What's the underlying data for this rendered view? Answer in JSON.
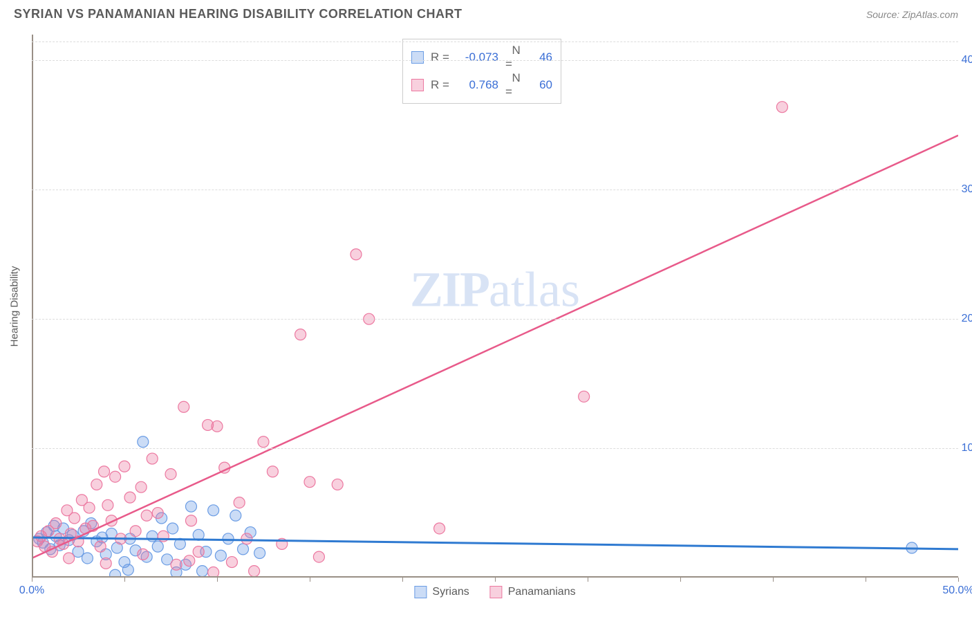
{
  "header": {
    "title": "SYRIAN VS PANAMANIAN HEARING DISABILITY CORRELATION CHART",
    "source": "Source: ZipAtlas.com"
  },
  "watermark": {
    "part1": "ZIP",
    "part2": "atlas"
  },
  "chart": {
    "type": "scatter",
    "ylabel": "Hearing Disability",
    "xlim": [
      0,
      50
    ],
    "ylim": [
      0,
      42
    ],
    "xticks": [
      0,
      50
    ],
    "xtick_labels": [
      "0.0%",
      "50.0%"
    ],
    "xminor_step": 5,
    "yticks": [
      10,
      20,
      30,
      40
    ],
    "ytick_labels": [
      "10.0%",
      "20.0%",
      "30.0%",
      "40.0%"
    ],
    "grid_color": "#dcdcdc",
    "axis_color": "#998f86",
    "background_color": "#ffffff",
    "series": [
      {
        "name": "Syrians",
        "color_fill": "rgba(106,156,228,0.35)",
        "color_stroke": "#6a9ce4",
        "marker_radius": 8,
        "trend": {
          "x1": 0,
          "y1": 3.1,
          "x2": 50,
          "y2": 2.2,
          "stroke": "#2f7ad1",
          "width": 3
        },
        "stats": {
          "R": "-0.073",
          "N": "46"
        },
        "points": [
          [
            0.4,
            3.0
          ],
          [
            0.6,
            2.7
          ],
          [
            0.8,
            3.5
          ],
          [
            1.0,
            2.2
          ],
          [
            1.2,
            4.0
          ],
          [
            1.3,
            3.2
          ],
          [
            1.5,
            2.5
          ],
          [
            1.7,
            3.8
          ],
          [
            2.0,
            2.9
          ],
          [
            2.2,
            3.3
          ],
          [
            2.5,
            2.0
          ],
          [
            2.8,
            3.6
          ],
          [
            3.0,
            1.5
          ],
          [
            3.2,
            4.2
          ],
          [
            3.5,
            2.8
          ],
          [
            3.8,
            3.1
          ],
          [
            4.0,
            1.8
          ],
          [
            4.3,
            3.4
          ],
          [
            4.6,
            2.3
          ],
          [
            5.0,
            1.2
          ],
          [
            5.3,
            3.0
          ],
          [
            5.6,
            2.1
          ],
          [
            6.0,
            10.5
          ],
          [
            6.2,
            1.6
          ],
          [
            6.5,
            3.2
          ],
          [
            6.8,
            2.4
          ],
          [
            7.0,
            4.6
          ],
          [
            7.3,
            1.4
          ],
          [
            7.6,
            3.8
          ],
          [
            8.0,
            2.6
          ],
          [
            8.3,
            1.0
          ],
          [
            8.6,
            5.5
          ],
          [
            9.0,
            3.3
          ],
          [
            9.4,
            2.0
          ],
          [
            9.8,
            5.2
          ],
          [
            10.2,
            1.7
          ],
          [
            10.6,
            3.0
          ],
          [
            11.0,
            4.8
          ],
          [
            11.4,
            2.2
          ],
          [
            11.8,
            3.5
          ],
          [
            12.3,
            1.9
          ],
          [
            5.2,
            0.6
          ],
          [
            7.8,
            0.4
          ],
          [
            4.5,
            0.2
          ],
          [
            9.2,
            0.5
          ],
          [
            47.5,
            2.3
          ]
        ]
      },
      {
        "name": "Panamanians",
        "color_fill": "rgba(236,120,160,0.35)",
        "color_stroke": "#ec78a0",
        "marker_radius": 8,
        "trend": {
          "x1": 0,
          "y1": 1.5,
          "x2": 50,
          "y2": 34.2,
          "stroke": "#e85a8a",
          "width": 2.5
        },
        "stats": {
          "R": "0.768",
          "N": "60"
        },
        "points": [
          [
            0.3,
            2.8
          ],
          [
            0.5,
            3.2
          ],
          [
            0.7,
            2.4
          ],
          [
            0.9,
            3.6
          ],
          [
            1.1,
            2.0
          ],
          [
            1.3,
            4.2
          ],
          [
            1.5,
            3.0
          ],
          [
            1.7,
            2.6
          ],
          [
            1.9,
            5.2
          ],
          [
            2.1,
            3.4
          ],
          [
            2.3,
            4.6
          ],
          [
            2.5,
            2.8
          ],
          [
            2.7,
            6.0
          ],
          [
            2.9,
            3.8
          ],
          [
            3.1,
            5.4
          ],
          [
            3.3,
            4.0
          ],
          [
            3.5,
            7.2
          ],
          [
            3.7,
            2.4
          ],
          [
            3.9,
            8.2
          ],
          [
            4.1,
            5.6
          ],
          [
            4.3,
            4.4
          ],
          [
            4.5,
            7.8
          ],
          [
            4.8,
            3.0
          ],
          [
            5.0,
            8.6
          ],
          [
            5.3,
            6.2
          ],
          [
            5.6,
            3.6
          ],
          [
            5.9,
            7.0
          ],
          [
            6.2,
            4.8
          ],
          [
            6.5,
            9.2
          ],
          [
            6.8,
            5.0
          ],
          [
            7.1,
            3.2
          ],
          [
            7.5,
            8.0
          ],
          [
            7.8,
            1.0
          ],
          [
            8.2,
            13.2
          ],
          [
            8.6,
            4.4
          ],
          [
            9.0,
            2.0
          ],
          [
            9.5,
            11.8
          ],
          [
            10.0,
            11.7
          ],
          [
            10.4,
            8.5
          ],
          [
            10.8,
            1.2
          ],
          [
            11.2,
            5.8
          ],
          [
            11.6,
            3.0
          ],
          [
            12.0,
            0.5
          ],
          [
            12.5,
            10.5
          ],
          [
            13.0,
            8.2
          ],
          [
            13.5,
            2.6
          ],
          [
            14.5,
            18.8
          ],
          [
            15.0,
            7.4
          ],
          [
            15.5,
            1.6
          ],
          [
            16.5,
            7.2
          ],
          [
            17.5,
            25.0
          ],
          [
            18.2,
            20.0
          ],
          [
            22.0,
            3.8
          ],
          [
            29.8,
            14.0
          ],
          [
            40.5,
            36.4
          ],
          [
            6.0,
            1.8
          ],
          [
            9.8,
            0.4
          ],
          [
            8.5,
            1.3
          ],
          [
            4.0,
            1.1
          ],
          [
            2.0,
            1.5
          ]
        ]
      }
    ],
    "xlegend": [
      {
        "label": "Syrians",
        "fill": "rgba(106,156,228,0.35)",
        "stroke": "#6a9ce4"
      },
      {
        "label": "Panamanians",
        "fill": "rgba(236,120,160,0.35)",
        "stroke": "#ec78a0"
      }
    ]
  }
}
